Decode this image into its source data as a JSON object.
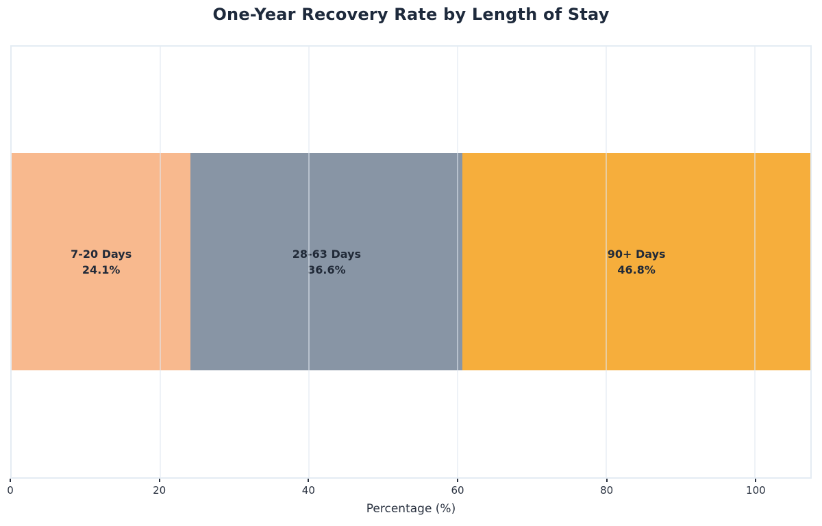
{
  "chart_data": {
    "type": "bar",
    "orientation": "horizontal_stacked",
    "title": "One-Year Recovery Rate by Length of Stay",
    "xlabel": "Percentage (%)",
    "categories": [
      "7-20 Days",
      "28-63 Days",
      "90+ Days"
    ],
    "values": [
      24.1,
      36.6,
      46.8
    ],
    "segments": [
      {
        "label": "7-20 Days",
        "value": 24.1,
        "display": "24.1%",
        "color": "#F8B98E"
      },
      {
        "label": "28-63 Days",
        "value": 36.6,
        "display": "36.6%",
        "color": "#8895A5"
      },
      {
        "label": "90+ Days",
        "value": 46.8,
        "display": "46.8%",
        "color": "#F6AE3C"
      }
    ],
    "x_ticks": [
      0,
      20,
      40,
      60,
      80,
      100
    ],
    "xlim": [
      0,
      107.5
    ],
    "grid": "vertical_faint_above_bars",
    "legend": "none",
    "colors": {
      "title_text": "#1E2A3C",
      "segment_label_text": "#212A38",
      "axis_text": "#2A3240",
      "plot_border": "#E4ECF3",
      "gridline": "rgba(224,232,240,0.55)",
      "background": "#FFFFFF"
    }
  }
}
